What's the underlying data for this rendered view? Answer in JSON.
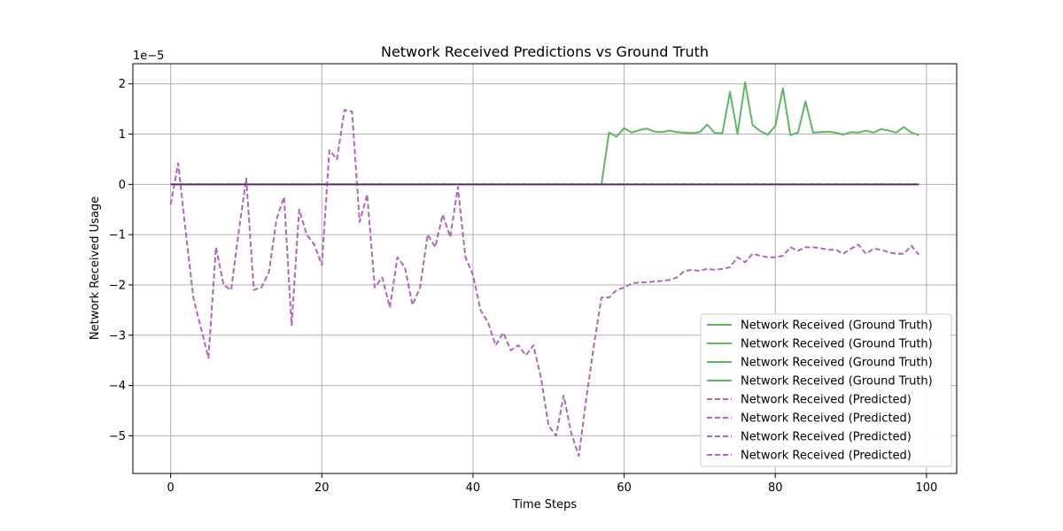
{
  "chart_data": {
    "type": "line",
    "title": "Network Received Predictions vs Ground Truth",
    "xlabel": "Time Steps",
    "ylabel": "Network Received Usage",
    "y_offset_text": "1e−5",
    "xlim": [
      -5,
      104
    ],
    "ylim": [
      -5.75,
      2.4
    ],
    "x_ticks": [
      0,
      20,
      40,
      60,
      80,
      100
    ],
    "y_ticks": [
      2,
      1,
      0,
      -1,
      -2,
      -3,
      -4,
      -5
    ],
    "x_tick_labels": [
      "0",
      "20",
      "40",
      "60",
      "80",
      "100"
    ],
    "y_tick_labels": [
      "2",
      "1",
      "0",
      "−1",
      "−2",
      "−3",
      "−4",
      "−5"
    ],
    "grid": true,
    "legend_position": "bottom-right",
    "colors": {
      "ground_truth": "#4caf50",
      "predicted": "#a855b5",
      "overlap_line": "#5b1d5e",
      "grid": "#b0b0b0"
    },
    "series": [
      {
        "name": "Network Received (Ground Truth)",
        "style": "solid",
        "color": "#4caf50",
        "x": [
          0,
          1,
          2,
          3,
          4,
          5,
          6,
          7,
          8,
          9,
          10,
          11,
          12,
          13,
          14,
          15,
          16,
          17,
          18,
          19,
          20,
          21,
          22,
          23,
          24,
          25,
          26,
          27,
          28,
          29,
          30,
          31,
          32,
          33,
          34,
          35,
          36,
          37,
          38,
          39,
          40,
          41,
          42,
          43,
          44,
          45,
          46,
          47,
          48,
          49,
          50,
          51,
          52,
          53,
          54,
          55,
          56,
          57,
          58,
          59,
          60,
          61,
          62,
          63,
          64,
          65,
          66,
          67,
          68,
          69,
          70,
          71,
          72,
          73,
          74,
          75,
          76,
          77,
          78,
          79,
          80,
          81,
          82,
          83,
          84,
          85,
          86,
          87,
          88,
          89,
          90,
          91,
          92,
          93,
          94,
          95,
          96,
          97,
          98,
          99
        ],
        "values": [
          0,
          0,
          0,
          0,
          0,
          0,
          0,
          0,
          0,
          0,
          0,
          0,
          0,
          0,
          0,
          0,
          0,
          0,
          0,
          0,
          0,
          0,
          0,
          0,
          0,
          0,
          0,
          0,
          0,
          0,
          0,
          0,
          0,
          0,
          0,
          0,
          0,
          0,
          0,
          0,
          0,
          0,
          0,
          0,
          0,
          0,
          0,
          0,
          0,
          0,
          0,
          0,
          0,
          0,
          0,
          0,
          0,
          0,
          1.03,
          0.95,
          1.12,
          1.03,
          1.08,
          1.11,
          1.05,
          1.04,
          1.07,
          1.04,
          1.03,
          1.02,
          1.04,
          1.19,
          1.02,
          1.02,
          1.84,
          1.0,
          2.03,
          1.18,
          1.06,
          0.99,
          1.16,
          1.91,
          0.98,
          1.03,
          1.65,
          1.03,
          1.04,
          1.05,
          1.03,
          0.99,
          1.04,
          1.03,
          1.07,
          1.03,
          1.1,
          1.07,
          1.03,
          1.14,
          1.03,
          0.98
        ]
      },
      {
        "name": "Network Received (Ground Truth)",
        "style": "solid",
        "color": "#4caf50",
        "x": [
          0,
          99
        ],
        "values": [
          0,
          0
        ]
      },
      {
        "name": "Network Received (Ground Truth)",
        "style": "solid",
        "color": "#4caf50",
        "x": [
          0,
          99
        ],
        "values": [
          0,
          0
        ]
      },
      {
        "name": "Network Received (Ground Truth)",
        "style": "solid",
        "color": "#4caf50",
        "x": [
          0,
          99
        ],
        "values": [
          0,
          0
        ]
      },
      {
        "name": "Network Received (Predicted)",
        "style": "dashed",
        "color": "#a855b5",
        "x": [
          0,
          1,
          2,
          3,
          4,
          5,
          6,
          7,
          8,
          9,
          10,
          11,
          12,
          13,
          14,
          15,
          16,
          17,
          18,
          19,
          20,
          21,
          22,
          23,
          24,
          25,
          26,
          27,
          28,
          29,
          30,
          31,
          32,
          33,
          34,
          35,
          36,
          37,
          38,
          39,
          40,
          41,
          42,
          43,
          44,
          45,
          46,
          47,
          48,
          49,
          50,
          51,
          52,
          53,
          54,
          55,
          56,
          57,
          58,
          59,
          60,
          61,
          62,
          63,
          64,
          65,
          66,
          67,
          68,
          69,
          70,
          71,
          72,
          73,
          74,
          75,
          76,
          77,
          78,
          79,
          80,
          81,
          82,
          83,
          84,
          85,
          86,
          87,
          88,
          89,
          90,
          91,
          92,
          93,
          94,
          95,
          96,
          97,
          98,
          99
        ],
        "values": [
          -0.4,
          0.42,
          -0.95,
          -2.25,
          -2.85,
          -3.45,
          -1.25,
          -2.0,
          -2.1,
          -0.95,
          0.12,
          -2.1,
          -2.05,
          -1.75,
          -0.7,
          -0.25,
          -2.8,
          -0.5,
          -1.0,
          -1.2,
          -1.6,
          0.68,
          0.5,
          1.48,
          1.45,
          -0.75,
          -0.2,
          -2.05,
          -1.85,
          -2.45,
          -1.45,
          -1.65,
          -2.4,
          -2.05,
          -1.0,
          -1.25,
          -0.6,
          -1.05,
          -0.05,
          -1.45,
          -1.8,
          -2.5,
          -2.75,
          -3.2,
          -2.95,
          -3.3,
          -3.2,
          -3.4,
          -3.2,
          -3.85,
          -4.8,
          -5.0,
          -4.2,
          -4.95,
          -5.4,
          -4.25,
          -3.2,
          -2.25,
          -2.25,
          -2.1,
          -2.05,
          -1.97,
          -1.95,
          -1.95,
          -1.93,
          -1.92,
          -1.9,
          -1.85,
          -1.72,
          -1.7,
          -1.72,
          -1.68,
          -1.7,
          -1.68,
          -1.65,
          -1.45,
          -1.55,
          -1.38,
          -1.42,
          -1.45,
          -1.45,
          -1.42,
          -1.25,
          -1.32,
          -1.25,
          -1.25,
          -1.27,
          -1.3,
          -1.3,
          -1.38,
          -1.28,
          -1.2,
          -1.38,
          -1.28,
          -1.3,
          -1.35,
          -1.38,
          -1.38,
          -1.22,
          -1.4
        ]
      },
      {
        "name": "Network Received (Predicted)",
        "style": "dashed",
        "color": "#a855b5",
        "x": [
          0,
          99
        ],
        "values": [
          0,
          0
        ]
      },
      {
        "name": "Network Received (Predicted)",
        "style": "dashed",
        "color": "#a855b5",
        "x": [
          0,
          99
        ],
        "values": [
          0,
          0
        ]
      },
      {
        "name": "Network Received (Predicted)",
        "style": "dashed",
        "color": "#a855b5",
        "x": [
          0,
          99
        ],
        "values": [
          0,
          0
        ]
      }
    ]
  }
}
